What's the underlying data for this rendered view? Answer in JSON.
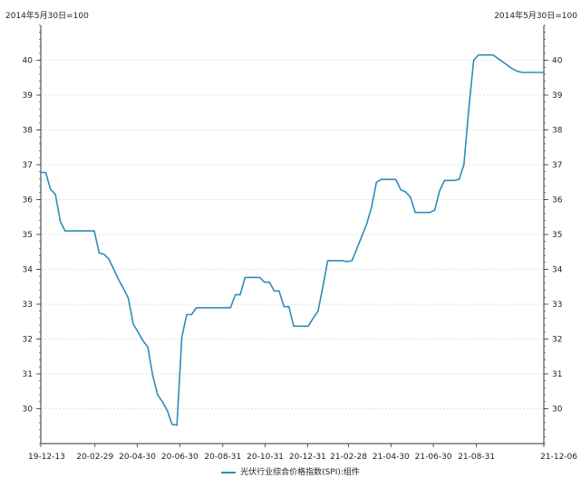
{
  "chart_data": {
    "type": "line",
    "unit_label_left": "2014年5月30日=100",
    "unit_label_right": "2014年5月30日=100",
    "xlabel": "",
    "ylabel": "",
    "ylim": [
      29.0,
      41.0
    ],
    "y_ticks": [
      30,
      31,
      32,
      33,
      34,
      35,
      36,
      37,
      38,
      39,
      40
    ],
    "x_tick_labels": [
      "19-12-13",
      "20-02-29",
      "20-04-30",
      "20-06-30",
      "20-08-31",
      "20-10-31",
      "20-12-31",
      "21-02-28",
      "21-04-30",
      "21-06-30",
      "21-08-31",
      "21-12-06"
    ],
    "grid": "horizontal-dashed",
    "legend_position": "bottom-center",
    "colors": {
      "series": "#2e8cb8",
      "axis": "#333333",
      "grid": "#d9d9d9"
    },
    "series": [
      {
        "name": "光伏行业综合价格指数(SPI):组件",
        "x": [
          "2019-12-13",
          "2019-12-20",
          "2019-12-27",
          "2020-01-03",
          "2020-01-10",
          "2020-01-17",
          "2020-01-24",
          "2020-01-31",
          "2020-02-07",
          "2020-02-14",
          "2020-02-21",
          "2020-02-28",
          "2020-03-06",
          "2020-03-13",
          "2020-03-20",
          "2020-03-27",
          "2020-04-03",
          "2020-04-10",
          "2020-04-17",
          "2020-04-24",
          "2020-05-01",
          "2020-05-08",
          "2020-05-15",
          "2020-05-22",
          "2020-05-29",
          "2020-06-05",
          "2020-06-12",
          "2020-06-19",
          "2020-06-26",
          "2020-07-03",
          "2020-07-10",
          "2020-07-17",
          "2020-07-24",
          "2020-07-31",
          "2020-08-07",
          "2020-08-14",
          "2020-08-21",
          "2020-08-28",
          "2020-09-04",
          "2020-09-11",
          "2020-09-18",
          "2020-09-25",
          "2020-10-02",
          "2020-10-09",
          "2020-10-16",
          "2020-10-23",
          "2020-10-30",
          "2020-11-06",
          "2020-11-13",
          "2020-11-20",
          "2020-11-27",
          "2020-12-04",
          "2020-12-11",
          "2020-12-18",
          "2020-12-25",
          "2021-01-01",
          "2021-01-08",
          "2021-01-15",
          "2021-01-22",
          "2021-01-29",
          "2021-02-05",
          "2021-02-12",
          "2021-02-19",
          "2021-02-26",
          "2021-03-05",
          "2021-03-12",
          "2021-03-19",
          "2021-03-26",
          "2021-04-02",
          "2021-04-09",
          "2021-04-16",
          "2021-04-23",
          "2021-04-30",
          "2021-05-07",
          "2021-05-14",
          "2021-05-21",
          "2021-05-28",
          "2021-06-04",
          "2021-06-11",
          "2021-06-18",
          "2021-06-25",
          "2021-07-02",
          "2021-07-09",
          "2021-07-16",
          "2021-07-23",
          "2021-07-30",
          "2021-08-06",
          "2021-08-13",
          "2021-08-20",
          "2021-08-27",
          "2021-09-03",
          "2021-09-10",
          "2021-09-17",
          "2021-09-24",
          "2021-10-01",
          "2021-10-08",
          "2021-10-15",
          "2021-10-22",
          "2021-10-29",
          "2021-11-05",
          "2021-11-12",
          "2021-11-19",
          "2021-11-26",
          "2021-12-03",
          "2021-12-06"
        ],
        "values": [
          36.78,
          36.78,
          36.3,
          36.15,
          35.38,
          35.1,
          35.1,
          35.1,
          35.1,
          35.1,
          35.1,
          35.1,
          34.47,
          34.43,
          34.3,
          34.0,
          33.7,
          33.45,
          33.17,
          32.43,
          32.2,
          31.95,
          31.77,
          30.97,
          30.4,
          30.2,
          29.95,
          29.55,
          29.53,
          32.05,
          32.7,
          32.7,
          32.9,
          32.9,
          32.9,
          32.9,
          32.9,
          32.9,
          32.9,
          32.9,
          33.27,
          33.27,
          33.77,
          33.77,
          33.77,
          33.77,
          33.63,
          33.63,
          33.38,
          33.38,
          32.93,
          32.93,
          32.37,
          32.37,
          32.37,
          32.37,
          32.6,
          32.8,
          33.5,
          34.25,
          34.25,
          34.25,
          34.25,
          34.22,
          34.25,
          34.6,
          34.95,
          35.3,
          35.78,
          36.5,
          36.58,
          36.58,
          36.58,
          36.58,
          36.28,
          36.22,
          36.07,
          35.63,
          35.63,
          35.63,
          35.63,
          35.7,
          36.25,
          36.55,
          36.55,
          36.55,
          36.58,
          37.0,
          38.6,
          40.0,
          40.15,
          40.15,
          40.15,
          40.15,
          40.05,
          39.95,
          39.85,
          39.75,
          39.68,
          39.65,
          39.65,
          39.65,
          39.65,
          39.65,
          39.65
        ]
      }
    ]
  }
}
